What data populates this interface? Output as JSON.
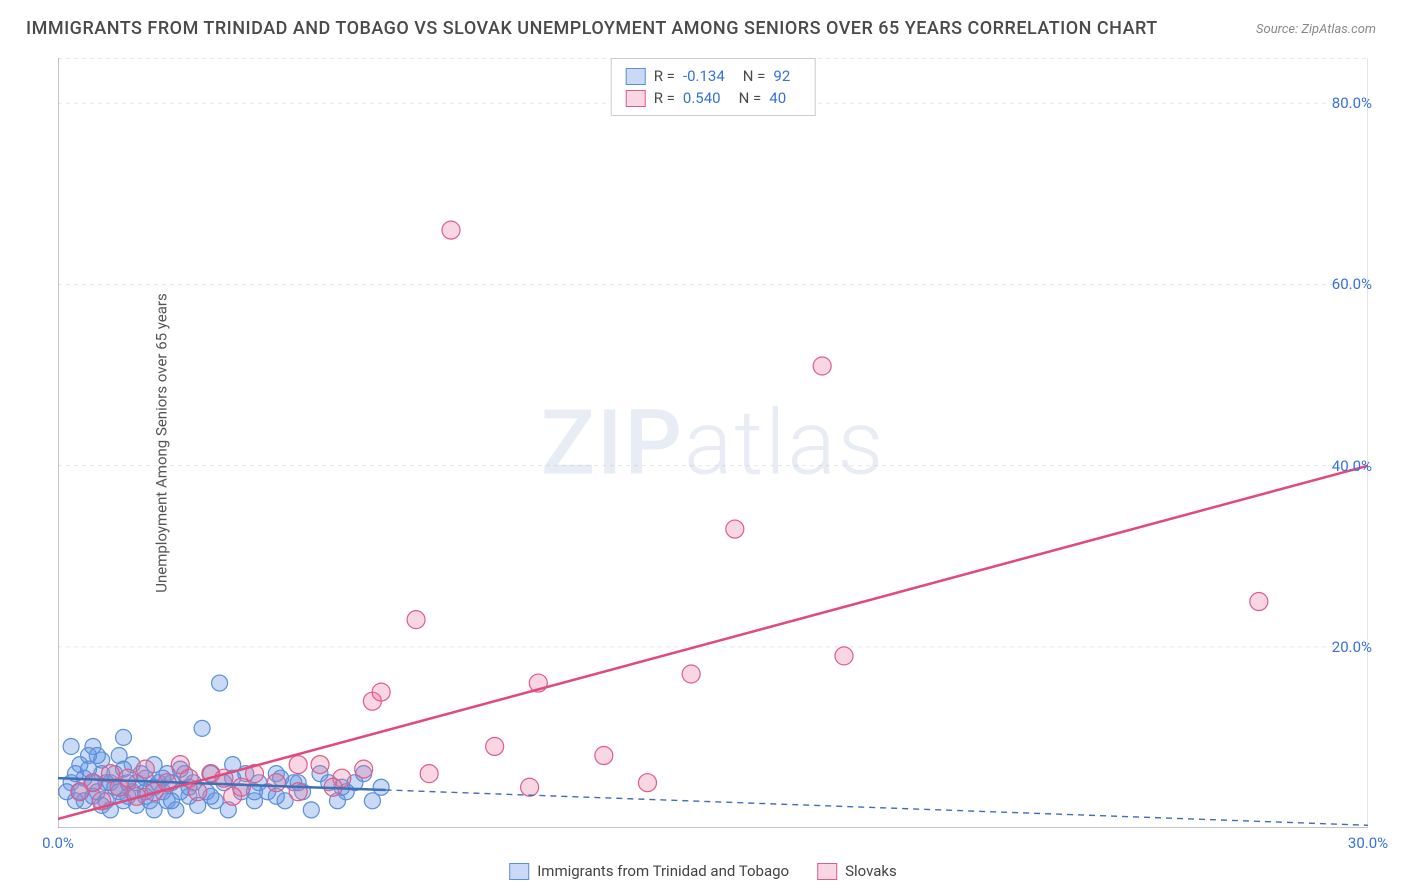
{
  "title": "IMMIGRANTS FROM TRINIDAD AND TOBAGO VS SLOVAK UNEMPLOYMENT AMONG SENIORS OVER 65 YEARS CORRELATION CHART",
  "source": "Source: ZipAtlas.com",
  "watermark_zip": "ZIP",
  "watermark_atlas": "atlas",
  "y_axis_label": "Unemployment Among Seniors over 65 years",
  "chart": {
    "type": "scatter",
    "xlim": [
      0,
      30
    ],
    "ylim": [
      0,
      85
    ],
    "x_plot_width": 1310,
    "y_plot_height": 770,
    "background_color": "#ffffff",
    "grid_color": "#e8e8e8",
    "grid_dash": "4,4",
    "y_ticks": [
      {
        "v": 20,
        "label": "20.0%"
      },
      {
        "v": 40,
        "label": "40.0%"
      },
      {
        "v": 60,
        "label": "60.0%"
      },
      {
        "v": 80,
        "label": "80.0%"
      }
    ],
    "x_ticks": [
      {
        "v": 0,
        "label": "0.0%"
      },
      {
        "v": 30,
        "label": "30.0%"
      }
    ],
    "series": [
      {
        "key": "trinidad",
        "label": "Immigrants from Trinidad and Tobago",
        "fill": "rgba(100,150,230,0.35)",
        "stroke": "#5b8fd8",
        "r_stat": "-0.134",
        "n_stat": "92",
        "trend": {
          "x1": 0,
          "y1": 5.5,
          "x2": 30,
          "y2": 0.3,
          "solid_until_x": 7.5,
          "color": "#3f6fb5",
          "width": 2.5
        },
        "marker_r": 8,
        "points": [
          [
            0.3,
            5
          ],
          [
            0.4,
            6
          ],
          [
            0.5,
            4
          ],
          [
            0.5,
            7
          ],
          [
            0.6,
            3
          ],
          [
            0.7,
            8
          ],
          [
            0.8,
            5
          ],
          [
            0.8,
            9
          ],
          [
            0.9,
            4
          ],
          [
            1.0,
            6
          ],
          [
            1.0,
            7.5
          ],
          [
            1.1,
            3
          ],
          [
            1.2,
            5
          ],
          [
            1.2,
            2
          ],
          [
            1.3,
            6
          ],
          [
            1.4,
            4
          ],
          [
            1.4,
            8
          ],
          [
            1.5,
            3
          ],
          [
            1.5,
            10
          ],
          [
            1.6,
            5
          ],
          [
            1.7,
            4
          ],
          [
            1.7,
            7
          ],
          [
            1.8,
            2.5
          ],
          [
            1.9,
            6
          ],
          [
            2.0,
            4
          ],
          [
            2.0,
            5.5
          ],
          [
            2.1,
            3
          ],
          [
            2.2,
            7
          ],
          [
            2.2,
            2
          ],
          [
            2.3,
            5
          ],
          [
            2.4,
            4
          ],
          [
            2.5,
            6
          ],
          [
            2.5,
            3
          ],
          [
            2.6,
            5
          ],
          [
            2.7,
            2
          ],
          [
            2.8,
            4
          ],
          [
            2.9,
            6
          ],
          [
            3.0,
            3.5
          ],
          [
            3.1,
            5
          ],
          [
            3.2,
            2.5
          ],
          [
            3.3,
            11
          ],
          [
            3.4,
            4
          ],
          [
            3.5,
            6
          ],
          [
            3.6,
            3
          ],
          [
            3.8,
            5
          ],
          [
            3.9,
            2
          ],
          [
            4.0,
            7
          ],
          [
            4.2,
            4
          ],
          [
            4.3,
            6
          ],
          [
            4.5,
            3
          ],
          [
            3.7,
            16
          ],
          [
            4.6,
            5
          ],
          [
            4.8,
            4
          ],
          [
            5.0,
            6
          ],
          [
            5.1,
            5.5
          ],
          [
            5.2,
            3
          ],
          [
            5.4,
            5
          ],
          [
            5.6,
            4
          ],
          [
            5.8,
            2
          ],
          [
            6.0,
            6
          ],
          [
            6.2,
            5
          ],
          [
            6.4,
            3
          ],
          [
            6.6,
            4
          ],
          [
            6.8,
            5
          ],
          [
            7.0,
            6
          ],
          [
            7.2,
            3
          ],
          [
            7.4,
            4.5
          ],
          [
            0.2,
            4
          ],
          [
            0.3,
            9
          ],
          [
            0.4,
            3
          ],
          [
            0.6,
            5.5
          ],
          [
            0.7,
            6.5
          ],
          [
            0.8,
            3.5
          ],
          [
            0.9,
            8
          ],
          [
            1.0,
            2.5
          ],
          [
            1.1,
            5
          ],
          [
            1.3,
            4.5
          ],
          [
            1.5,
            6.5
          ],
          [
            1.6,
            3.5
          ],
          [
            1.8,
            5
          ],
          [
            2.0,
            3.5
          ],
          [
            2.2,
            4.5
          ],
          [
            2.4,
            5.5
          ],
          [
            2.6,
            3
          ],
          [
            2.8,
            6.5
          ],
          [
            3.0,
            4.5
          ],
          [
            3.5,
            3.5
          ],
          [
            4.0,
            5.5
          ],
          [
            4.5,
            4
          ],
          [
            5.0,
            3.5
          ],
          [
            5.5,
            5
          ],
          [
            6.5,
            4.5
          ]
        ]
      },
      {
        "key": "slovaks",
        "label": "Slovaks",
        "fill": "rgba(233,120,160,0.30)",
        "stroke": "#e15b8b",
        "r_stat": "0.540",
        "n_stat": "40",
        "trend": {
          "x1": 0,
          "y1": 1,
          "x2": 30,
          "y2": 40,
          "solid_until_x": 30,
          "color": "#e04a7c",
          "width": 2.5
        },
        "marker_r": 9,
        "points": [
          [
            0.5,
            4
          ],
          [
            0.8,
            5
          ],
          [
            1.0,
            3
          ],
          [
            1.2,
            6
          ],
          [
            1.4,
            4.5
          ],
          [
            1.6,
            5.5
          ],
          [
            1.8,
            3.5
          ],
          [
            2.0,
            6.5
          ],
          [
            2.2,
            4
          ],
          [
            2.5,
            5
          ],
          [
            2.8,
            7
          ],
          [
            3.0,
            5.5
          ],
          [
            3.2,
            4
          ],
          [
            3.5,
            6
          ],
          [
            4.2,
            4.5
          ],
          [
            4.5,
            6
          ],
          [
            5.0,
            5
          ],
          [
            5.5,
            4
          ],
          [
            6.0,
            7
          ],
          [
            6.5,
            5.5
          ],
          [
            7.0,
            6.5
          ],
          [
            7.2,
            14
          ],
          [
            7.4,
            15
          ],
          [
            8.5,
            6
          ],
          [
            8.2,
            23
          ],
          [
            9.0,
            66
          ],
          [
            10.0,
            9
          ],
          [
            10.8,
            4.5
          ],
          [
            11.0,
            16
          ],
          [
            12.5,
            8
          ],
          [
            13.5,
            5
          ],
          [
            14.5,
            17
          ],
          [
            15.5,
            33
          ],
          [
            17.5,
            51
          ],
          [
            18.0,
            19
          ],
          [
            27.5,
            25
          ],
          [
            4.0,
            3.5
          ],
          [
            5.5,
            7
          ],
          [
            6.3,
            4.5
          ],
          [
            3.8,
            5.5
          ]
        ]
      }
    ]
  }
}
